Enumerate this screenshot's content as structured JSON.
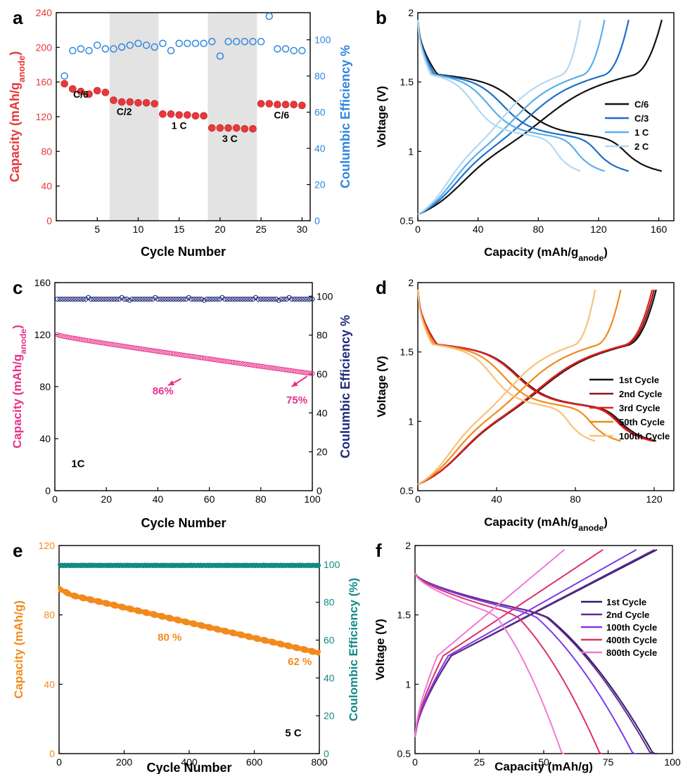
{
  "figure": {
    "panel_letters": [
      "a",
      "b",
      "c",
      "d",
      "e",
      "f"
    ]
  },
  "chart_data": [
    {
      "panel": "a",
      "type": "scatter",
      "xlabel": "Cycle Number",
      "ylabel_left": "Capacity (mAh/g",
      "ylabel_left_sub": "anode",
      "ylabel_left_suffix": ")",
      "ylabel_right": "Coulumbic Efficiency %",
      "xlim": [
        0,
        31
      ],
      "ylim_left": [
        0,
        240
      ],
      "ylim_right": [
        0,
        115
      ],
      "xticks": [
        5,
        10,
        15,
        20,
        25,
        30
      ],
      "yticks_left": [
        0,
        40,
        80,
        120,
        160,
        200,
        240
      ],
      "yticks_right": [
        0,
        20,
        40,
        60,
        80,
        100
      ],
      "shaded_ranges": [
        [
          6.5,
          12.5
        ],
        [
          18.5,
          24.5
        ]
      ],
      "annotations": [
        {
          "text": "C/6",
          "x": 3,
          "y": 142
        },
        {
          "text": "C/2",
          "x": 8.3,
          "y": 122
        },
        {
          "text": "1 C",
          "x": 15,
          "y": 106
        },
        {
          "text": "3 C",
          "x": 21.2,
          "y": 91
        },
        {
          "text": "C/6",
          "x": 27.5,
          "y": 118
        }
      ],
      "series": [
        {
          "axis": "left",
          "marker": "filled",
          "color": "#e8383b",
          "x": [
            1,
            2,
            3,
            4,
            5,
            6,
            7,
            8,
            9,
            10,
            11,
            12,
            13,
            14,
            15,
            16,
            17,
            18,
            19,
            20,
            21,
            22,
            23,
            24,
            25,
            26,
            27,
            28,
            29,
            30
          ],
          "values": [
            158,
            152,
            149,
            146,
            150,
            148,
            139,
            137,
            137,
            136,
            136,
            135,
            123,
            123,
            122,
            122,
            121,
            121,
            107,
            107,
            107,
            107,
            106,
            106,
            135,
            135,
            134,
            134,
            134,
            133
          ]
        },
        {
          "axis": "right",
          "marker": "open",
          "color": "#2e86de",
          "x": [
            1,
            2,
            3,
            4,
            5,
            6,
            7,
            8,
            9,
            10,
            11,
            12,
            13,
            14,
            15,
            16,
            17,
            18,
            19,
            20,
            21,
            22,
            23,
            24,
            25,
            26,
            27,
            28,
            29,
            30
          ],
          "values": [
            80,
            94,
            95,
            94,
            97,
            95,
            95,
            96,
            97,
            98,
            97,
            96,
            98,
            94,
            98,
            98,
            98,
            98,
            99,
            91,
            99,
            99,
            99,
            99,
            99,
            113,
            95,
            95,
            94,
            94
          ]
        }
      ]
    },
    {
      "panel": "b",
      "type": "line",
      "xlabel": "Capacity (mAh/g",
      "xlabel_sub": "anode",
      "xlabel_suffix": ")",
      "ylabel": "Voltage (V)",
      "xlim": [
        0,
        170
      ],
      "ylim": [
        0.5,
        2.0
      ],
      "xticks": [
        0,
        40,
        80,
        120,
        160
      ],
      "yticks": [
        0.5,
        1.0,
        1.5,
        2.0
      ],
      "legend": "center-right",
      "series": [
        {
          "name": "C/6",
          "color": "#111111",
          "capacity": 162,
          "plateau_scale": 1.0
        },
        {
          "name": "C/3",
          "color": "#1c6fc7",
          "capacity": 140,
          "plateau_scale": 0.96
        },
        {
          "name": "1 C",
          "color": "#5aaeea",
          "capacity": 124,
          "plateau_scale": 0.9
        },
        {
          "name": "2 C",
          "color": "#b2d8f3",
          "capacity": 108,
          "plateau_scale": 0.82
        }
      ]
    },
    {
      "panel": "c",
      "type": "scatter",
      "xlabel": "Cycle Number",
      "ylabel_left": "Capacity (mAh/g",
      "ylabel_left_sub": "anode",
      "ylabel_left_suffix": ")",
      "ylabel_right": "Coulumbic Efficiency %",
      "xlim": [
        0,
        100
      ],
      "ylim_left": [
        0,
        160
      ],
      "ylim_right": [
        0,
        107
      ],
      "xticks": [
        0,
        20,
        40,
        60,
        80,
        100
      ],
      "yticks_left": [
        0,
        40,
        80,
        120,
        160
      ],
      "yticks_right": [
        0,
        20,
        40,
        60,
        80,
        100
      ],
      "annotations": [
        {
          "text": "86%",
          "x": 42,
          "y": 74,
          "arrow_from": [
            44,
            81
          ],
          "arrow_to": [
            49,
            86
          ]
        },
        {
          "text": "75%",
          "x": 94,
          "y": 67,
          "arrow_from": [
            92,
            80
          ],
          "arrow_to": [
            98,
            88
          ]
        },
        {
          "text": "1C",
          "x": 9,
          "y": 18
        }
      ],
      "series": [
        {
          "axis": "left",
          "marker": "open",
          "color": "#e8308a",
          "start": 120,
          "end": 90,
          "count": 100
        },
        {
          "axis": "right",
          "marker": "open",
          "color": "#1f2a7a",
          "start": 98.5,
          "end": 98.5,
          "count": 100
        }
      ]
    },
    {
      "panel": "d",
      "type": "line",
      "xlabel": "Capacity (mAh/g",
      "xlabel_sub": "anode",
      "xlabel_suffix": ")",
      "ylabel": "Voltage (V)",
      "xlim": [
        0,
        130
      ],
      "ylim": [
        0.5,
        2.0
      ],
      "xticks": [
        0,
        40,
        80,
        120
      ],
      "yticks": [
        0.5,
        1.0,
        1.5,
        2.0
      ],
      "legend": "center-right",
      "series": [
        {
          "name": "1st Cycle",
          "color": "#111111",
          "capacity": 121
        },
        {
          "name": "2nd Cycle",
          "color": "#8b1a1a",
          "capacity": 120
        },
        {
          "name": "3rd Cycle",
          "color": "#e02020",
          "capacity": 119
        },
        {
          "name": "50th Cycle",
          "color": "#f08a1c",
          "capacity": 103
        },
        {
          "name": "100th Cycle",
          "color": "#f7c27a",
          "capacity": 90
        }
      ]
    },
    {
      "panel": "e",
      "type": "scatter",
      "xlabel": "Cycle Number",
      "ylabel_left": "Capacity (mAh/g)",
      "ylabel_right": "Coulombic Efficiency (%)",
      "xlim": [
        0,
        800
      ],
      "ylim_left": [
        0,
        120
      ],
      "ylim_right": [
        0,
        110
      ],
      "xticks": [
        0,
        200,
        400,
        600,
        800
      ],
      "yticks_left": [
        0,
        40,
        80,
        120
      ],
      "yticks_right": [
        0,
        20,
        40,
        60,
        80,
        100
      ],
      "annotations": [
        {
          "text": "80 %",
          "x": 340,
          "y": 65
        },
        {
          "text": "62 %",
          "x": 740,
          "y": 51
        },
        {
          "text": "5 C",
          "x": 720,
          "y": 10
        }
      ],
      "series": [
        {
          "axis": "left",
          "marker": "filled",
          "color": "#f28a1c",
          "start": 93,
          "end": 58,
          "count": 800
        },
        {
          "axis": "right",
          "marker": "filled",
          "color": "#138a86",
          "start": 99.5,
          "end": 99.5,
          "count": 800
        }
      ]
    },
    {
      "panel": "f",
      "type": "line",
      "xlabel": "Capacity (mAh/g)",
      "ylabel": "Voltage (V)",
      "xlim": [
        0,
        100
      ],
      "ylim": [
        0.5,
        2.0
      ],
      "xticks": [
        0,
        25,
        50,
        75,
        100
      ],
      "yticks": [
        0.5,
        1.0,
        1.5,
        2.0
      ],
      "legend": "center-right",
      "series": [
        {
          "name": "1st Cycle",
          "color": "#2a1f6e",
          "capacity": 94
        },
        {
          "name": "2nd Cycle",
          "color": "#6a2a8a",
          "capacity": 93
        },
        {
          "name": "100th Cycle",
          "color": "#7b3be8",
          "capacity": 86
        },
        {
          "name": "400th Cycle",
          "color": "#e0306a",
          "capacity": 73
        },
        {
          "name": "800th Cycle",
          "color": "#f07ad8",
          "capacity": 58
        }
      ]
    }
  ]
}
